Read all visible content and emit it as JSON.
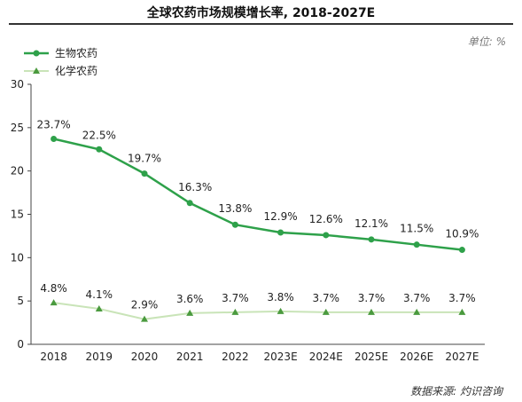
{
  "header": {
    "title": "全球农药市场规模增长率, 2018-2027E",
    "unit": "单位: %"
  },
  "footer": {
    "source": "数据来源: 灼识咨询"
  },
  "chart_data": {
    "type": "line",
    "title": "全球农药市场规模增长率, 2018-2027E",
    "xlabel": "",
    "ylabel": "",
    "categories": [
      "2018",
      "2019",
      "2020",
      "2021",
      "2022",
      "2023E",
      "2024E",
      "2025E",
      "2026E",
      "2027E"
    ],
    "ylim": [
      0,
      30
    ],
    "yticks": [
      0,
      5,
      10,
      15,
      20,
      25,
      30
    ],
    "grid": false,
    "legend_position": "top-left",
    "series": [
      {
        "name": "生物农药",
        "marker": "circle",
        "color": "#2ea14a",
        "values": [
          23.7,
          22.5,
          19.7,
          16.3,
          13.8,
          12.9,
          12.6,
          12.1,
          11.5,
          10.9
        ],
        "labels": [
          "23.7%",
          "22.5%",
          "19.7%",
          "16.3%",
          "13.8%",
          "12.9%",
          "12.6%",
          "12.1%",
          "11.5%",
          "10.9%"
        ]
      },
      {
        "name": "化学农药",
        "marker": "triangle",
        "color": "#c9e4b8",
        "marker_color": "#4a9a3e",
        "values": [
          4.8,
          4.1,
          2.9,
          3.6,
          3.7,
          3.8,
          3.7,
          3.7,
          3.7,
          3.7
        ],
        "labels": [
          "4.8%",
          "4.1%",
          "2.9%",
          "3.6%",
          "3.7%",
          "3.8%",
          "3.7%",
          "3.7%",
          "3.7%",
          "3.7%"
        ]
      }
    ]
  }
}
